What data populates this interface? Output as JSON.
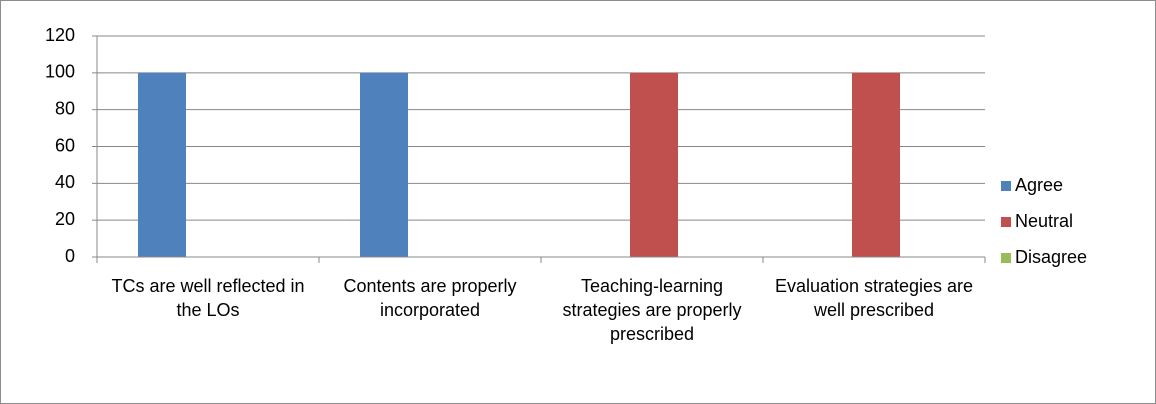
{
  "chart_data": {
    "type": "bar",
    "categories": [
      "TCs are well reflected in the LOs",
      "Contents are properly incorporated",
      "Teaching-learning strategies are properly prescribed",
      "Evaluation strategies are well prescribed"
    ],
    "series": [
      {
        "name": "Agree",
        "color": "#4f81bd",
        "values": [
          100,
          100,
          0,
          0
        ]
      },
      {
        "name": "Neutral",
        "color": "#c0504d",
        "values": [
          0,
          0,
          100,
          100
        ]
      },
      {
        "name": "Disagree",
        "color": "#9bbb59",
        "values": [
          0,
          0,
          0,
          0
        ]
      }
    ],
    "ylim": [
      0,
      120
    ],
    "yticks": [
      0,
      20,
      40,
      60,
      80,
      100,
      120
    ],
    "grid": true,
    "legend": "right"
  }
}
